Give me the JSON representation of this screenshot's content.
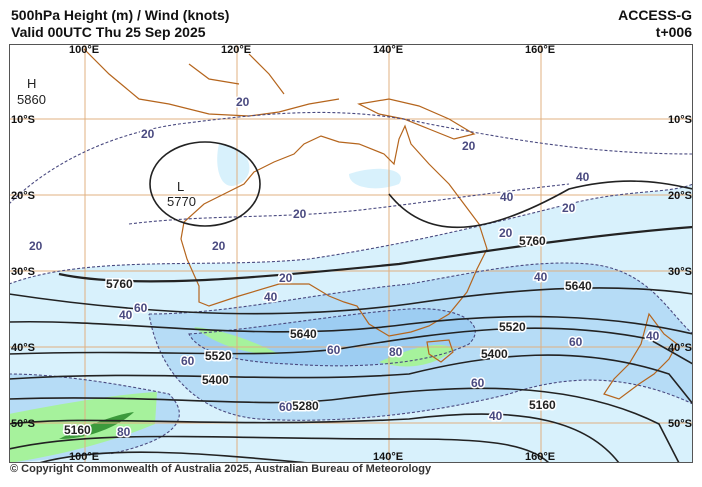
{
  "header": {
    "title": "500hPa Height (m) / Wind (knots)",
    "valid": "Valid 00UTC Thu 25 Sep 2025",
    "model": "ACCESS-G",
    "lead_time": "t+006"
  },
  "footer": {
    "copyright": "© Copyright Commonwealth of Australia 2025, Australian Bureau of Meteorology"
  },
  "map": {
    "longitude_labels": [
      "100°E",
      "120°E",
      "140°E",
      "160°E"
    ],
    "latitude_labels": [
      "10°S",
      "20°S",
      "30°S",
      "40°S",
      "50°S"
    ],
    "pressure_centres": [
      {
        "symbol": "H",
        "value": "5860"
      },
      {
        "symbol": "L",
        "value": "5770"
      }
    ],
    "height_contour_labels": [
      "5760",
      "5760",
      "5640",
      "5640",
      "5520",
      "5520",
      "5400",
      "5400",
      "5280",
      "5160",
      "5160"
    ],
    "isotach_labels": [
      "20",
      "20",
      "20",
      "20",
      "20",
      "20",
      "20",
      "20",
      "20",
      "40",
      "40",
      "40",
      "40",
      "40",
      "40",
      "40",
      "60",
      "60",
      "60",
      "60",
      "60",
      "60",
      "80",
      "80"
    ],
    "colors": {
      "isotach_20_40": "#d8f1fc",
      "isotach_40_60": "#b6dcf6",
      "isotach_60_80": "#9dcdf2",
      "isotach_80_plus": "#a6f29c",
      "isotach_100_plus": "#3c9a3c",
      "coastline": "#b5651d",
      "height_contour": "#222222",
      "isotach_line": "#4a4a80",
      "graticule": "#e0b080"
    }
  }
}
